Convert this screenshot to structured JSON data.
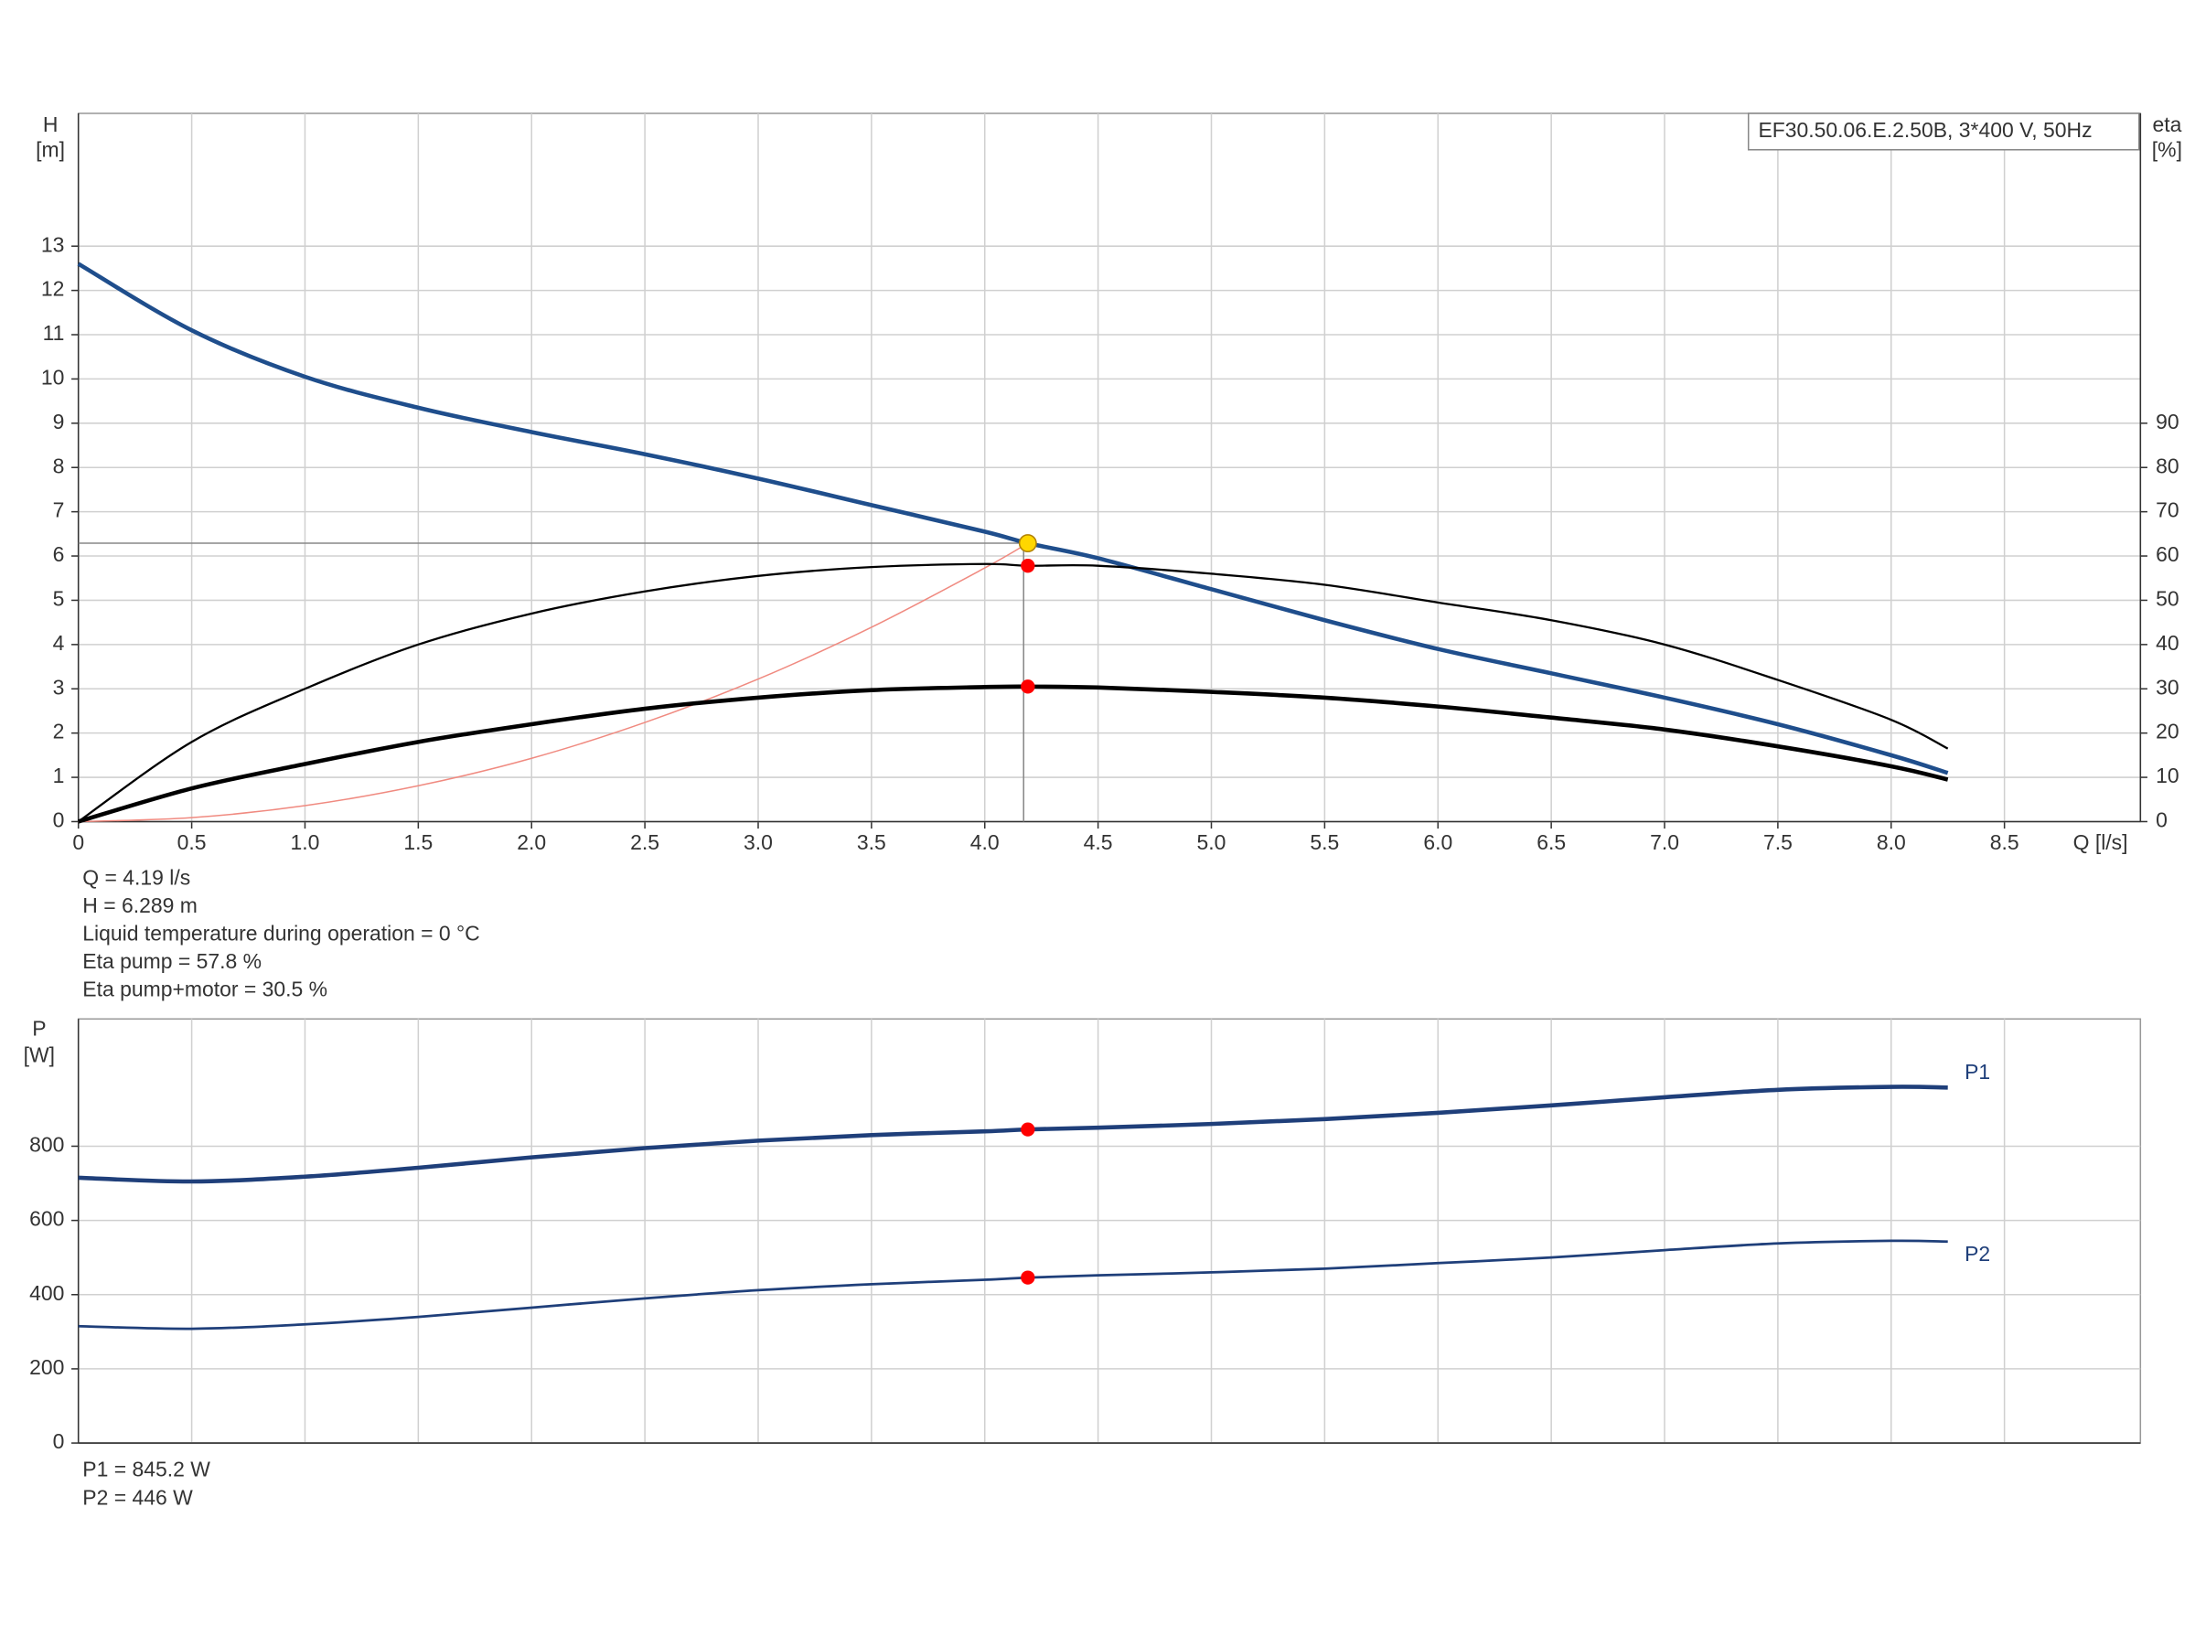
{
  "chart_data": [
    {
      "type": "line",
      "legend": "EF30.50.06.E.2.50B, 3*400 V, 50Hz",
      "x_label": "Q [l/s]",
      "y_label": "H",
      "y_unit": "[m]",
      "y2_label": "eta",
      "y2_unit": "[%]",
      "xlim": [
        0,
        9.1
      ],
      "ylim": [
        0,
        16
      ],
      "y2lim": [
        0,
        160
      ],
      "grid": true,
      "xticks": [
        0,
        0.5,
        {
          "value": 1,
          "label": "1.0"
        },
        1.5,
        {
          "value": 2,
          "label": "2.0"
        },
        2.5,
        {
          "value": 3,
          "label": "3.0"
        },
        3.5,
        {
          "value": 4,
          "label": "4.0"
        },
        4.5,
        {
          "value": 5,
          "label": "5.0"
        },
        5.5,
        {
          "value": 6,
          "label": "6.0"
        },
        6.5,
        {
          "value": 7,
          "label": "7.0"
        },
        7.5,
        {
          "value": 8,
          "label": "8.0"
        },
        8.5
      ],
      "yticks": [
        0,
        1,
        2,
        3,
        4,
        5,
        6,
        7,
        8,
        9,
        10,
        11,
        12,
        13
      ],
      "y2ticks": [
        0,
        10,
        20,
        30,
        40,
        50,
        60,
        70,
        80,
        90
      ],
      "series": [
        {
          "color": "#f08a80",
          "width": 1,
          "x": [
            0,
            0.5,
            1,
            1.5,
            2,
            2.5,
            3,
            3.5,
            4,
            4.19
          ],
          "values": [
            0,
            0.09,
            0.36,
            0.81,
            1.43,
            2.24,
            3.22,
            4.39,
            5.73,
            6.289
          ]
        },
        {
          "color": "#1f4e8c",
          "width": 3,
          "x": [
            0,
            0.5,
            1,
            1.5,
            2,
            2.5,
            3,
            3.5,
            4,
            4.19,
            4.5,
            5,
            5.5,
            6,
            6.5,
            7,
            7.5,
            8,
            8.25
          ],
          "values": [
            12.6,
            11.1,
            10.05,
            9.35,
            8.8,
            8.3,
            7.75,
            7.15,
            6.55,
            6.289,
            5.95,
            5.25,
            4.55,
            3.9,
            3.35,
            2.8,
            2.2,
            1.5,
            1.1
          ]
        },
        {
          "color": "#000000",
          "width": 1.5,
          "axis": "y2",
          "marker": true,
          "x": [
            0,
            0.5,
            1,
            1.5,
            2,
            2.5,
            3,
            3.5,
            4,
            4.19,
            4.5,
            5,
            5.5,
            6,
            6.5,
            7,
            7.5,
            8,
            8.25
          ],
          "values": [
            0,
            18,
            30,
            40,
            47,
            52,
            55.5,
            57.5,
            58.2,
            57.8,
            57.8,
            56,
            53.5,
            49.5,
            45.5,
            40,
            32,
            23,
            16.5
          ]
        },
        {
          "color": "#000000",
          "width": 3,
          "axis": "y2",
          "marker": true,
          "x": [
            0,
            0.5,
            1,
            1.5,
            2,
            2.5,
            3,
            3.5,
            4,
            4.19,
            4.5,
            5,
            5.5,
            6,
            6.5,
            7,
            7.5,
            8,
            8.25
          ],
          "values": [
            0,
            7.5,
            13,
            18,
            22,
            25.5,
            28,
            29.7,
            30.4,
            30.5,
            30.3,
            29.3,
            28,
            26,
            23.5,
            20.8,
            17,
            12.5,
            9.5
          ]
        }
      ],
      "operating_point": {
        "x": 4.19,
        "y": 6.289,
        "color": "#ffd700"
      },
      "annotations": [
        "Q = 4.19 l/s",
        "H = 6.289 m",
        "Liquid temperature during operation = 0 °C",
        "Eta pump = 57.8 %",
        "Eta pump+motor = 30.5 %"
      ]
    },
    {
      "type": "line",
      "y_label": "P",
      "y_unit": "[W]",
      "xlim": [
        0,
        9.1
      ],
      "ylim": [
        0,
        1143
      ],
      "grid": true,
      "yticks": [
        0,
        200,
        400,
        600,
        800
      ],
      "series": [
        {
          "name": "P1",
          "color": "#1f3f7a",
          "width": 3,
          "marker": true,
          "x": [
            0,
            0.5,
            1,
            1.5,
            2,
            2.5,
            3,
            3.5,
            4,
            4.19,
            4.5,
            5,
            5.5,
            6,
            6.5,
            7,
            7.5,
            8,
            8.25
          ],
          "values": [
            715,
            705,
            718,
            742,
            770,
            795,
            815,
            830,
            840,
            845.2,
            850,
            860,
            873,
            890,
            910,
            932,
            952,
            960,
            958
          ]
        },
        {
          "name": "P2",
          "color": "#1f3f7a",
          "width": 1.8,
          "marker": true,
          "x": [
            0,
            0.5,
            1,
            1.5,
            2,
            2.5,
            3,
            3.5,
            4,
            4.19,
            4.5,
            5,
            5.5,
            6,
            6.5,
            7,
            7.5,
            8,
            8.25
          ],
          "values": [
            315,
            308,
            320,
            340,
            365,
            390,
            412,
            428,
            440,
            446,
            452,
            460,
            470,
            485,
            500,
            520,
            538,
            545,
            543
          ]
        }
      ],
      "annotations": [
        "P1 = 845.2 W",
        "P2 = 446 W"
      ]
    }
  ]
}
